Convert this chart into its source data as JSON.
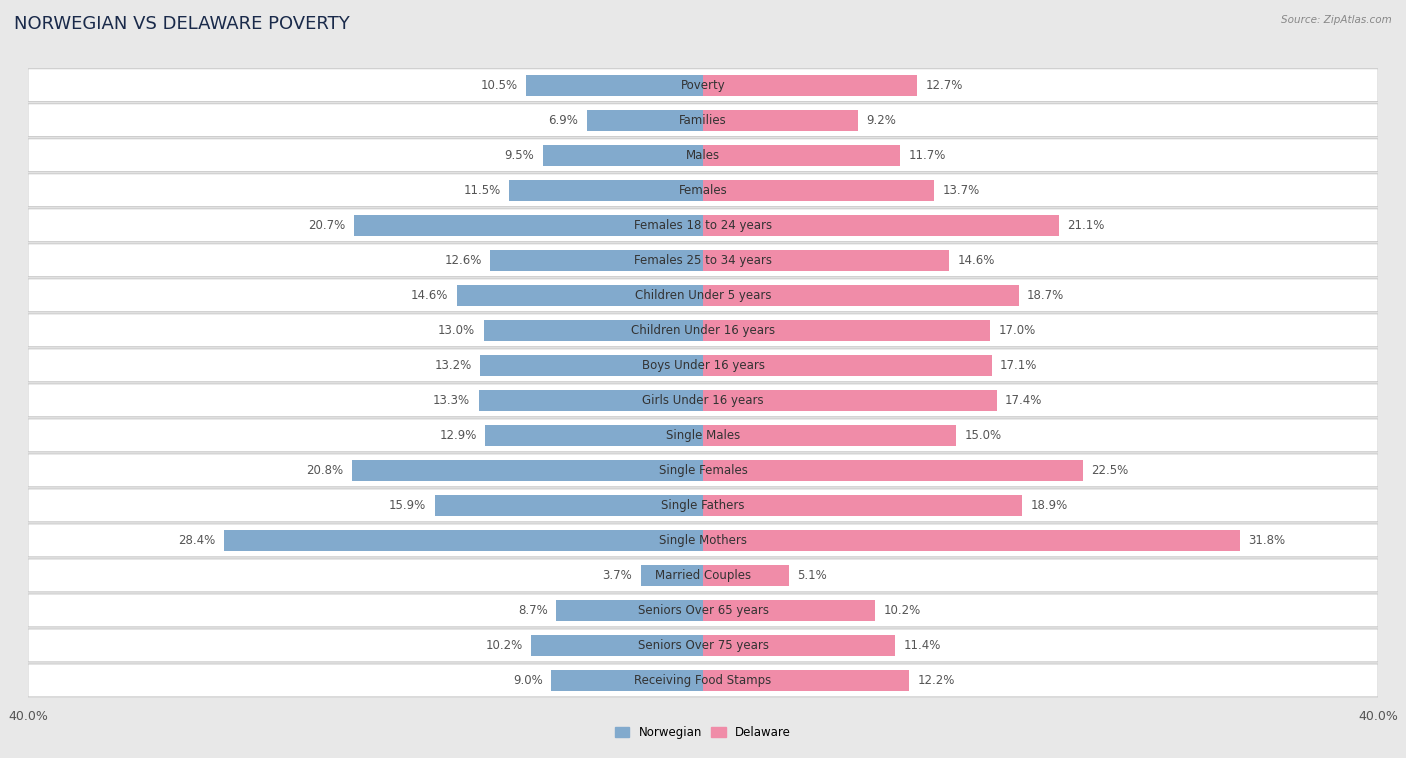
{
  "title": "NORWEGIAN VS DELAWARE POVERTY",
  "source": "Source: ZipAtlas.com",
  "categories": [
    "Poverty",
    "Families",
    "Males",
    "Females",
    "Females 18 to 24 years",
    "Females 25 to 34 years",
    "Children Under 5 years",
    "Children Under 16 years",
    "Boys Under 16 years",
    "Girls Under 16 years",
    "Single Males",
    "Single Females",
    "Single Fathers",
    "Single Mothers",
    "Married Couples",
    "Seniors Over 65 years",
    "Seniors Over 75 years",
    "Receiving Food Stamps"
  ],
  "norwegian": [
    10.5,
    6.9,
    9.5,
    11.5,
    20.7,
    12.6,
    14.6,
    13.0,
    13.2,
    13.3,
    12.9,
    20.8,
    15.9,
    28.4,
    3.7,
    8.7,
    10.2,
    9.0
  ],
  "delaware": [
    12.7,
    9.2,
    11.7,
    13.7,
    21.1,
    14.6,
    18.7,
    17.0,
    17.1,
    17.4,
    15.0,
    22.5,
    18.9,
    31.8,
    5.1,
    10.2,
    11.4,
    12.2
  ],
  "norwegian_color": "#82AACD",
  "delaware_color": "#F08CA8",
  "bar_height": 0.6,
  "xlim": 40.0,
  "background_color": "#e8e8e8",
  "row_bg_color": "#ffffff",
  "row_border_color": "#cccccc",
  "legend_norwegian": "Norwegian",
  "legend_delaware": "Delaware",
  "title_fontsize": 13,
  "label_fontsize": 8.5,
  "value_fontsize": 8.5,
  "tick_fontsize": 9
}
